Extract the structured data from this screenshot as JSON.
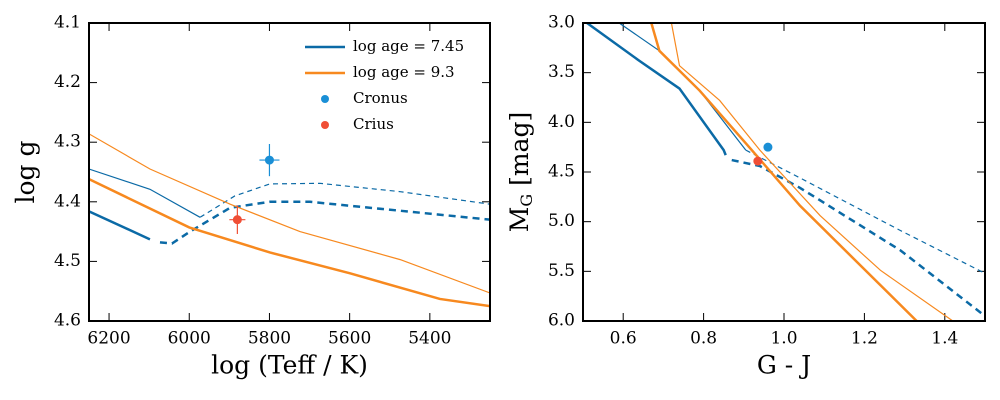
{
  "chart_data": [
    {
      "type": "line",
      "xlabel": "log (Teff / K)",
      "ylabel": [
        "log g"
      ],
      "xlim": [
        6250,
        5250
      ],
      "ylim": [
        4.6,
        4.1
      ],
      "xticks": [
        6200,
        6000,
        5800,
        5600,
        5400
      ],
      "yticks": [
        4.1,
        4.2,
        4.3,
        4.4,
        4.5,
        4.6
      ],
      "legend": "upper right",
      "series": [
        {
          "type": "line",
          "name": "log age = 7.45",
          "color": "#0b6aa6",
          "curves": [
            {
              "width": 2.5,
              "dash": "none",
              "x": [
                6250,
                6098
              ],
              "y": [
                4.416,
                4.463
              ]
            },
            {
              "width": 2.5,
              "dash": "7 5",
              "x": [
                6073,
                6043,
                5998,
                5898,
                5799,
                5699,
                5474,
                5250
              ],
              "y": [
                4.468,
                4.47,
                4.45,
                4.41,
                4.4,
                4.4,
                4.415,
                4.43
              ]
            },
            {
              "width": 1.2,
              "dash": "none",
              "x": [
                6250,
                6098,
                5973
              ],
              "y": [
                4.345,
                4.379,
                4.426
              ]
            },
            {
              "width": 1.2,
              "dash": "5 4",
              "x": [
                5973,
                5886,
                5799,
                5674,
                5474,
                5250
              ],
              "y": [
                4.426,
                4.39,
                4.37,
                4.369,
                4.383,
                4.404
              ]
            }
          ]
        },
        {
          "type": "line",
          "name": "log age = 9.3",
          "color": "#f7891f",
          "curves": [
            {
              "width": 2.5,
              "dash": "none",
              "x": [
                6250,
                6000,
                5799,
                5599,
                5375,
                5250
              ],
              "y": [
                4.362,
                4.443,
                4.485,
                4.52,
                4.563,
                4.575
              ]
            },
            {
              "width": 1.2,
              "dash": "none",
              "x": [
                6250,
                6098,
                5898,
                5724,
                5474,
                5250
              ],
              "y": [
                4.286,
                4.345,
                4.404,
                4.45,
                4.497,
                4.553
              ]
            }
          ]
        },
        {
          "type": "scatter",
          "name": "Cronus",
          "color": "#1a8fd6",
          "x": [
            5800
          ],
          "y": [
            4.33
          ],
          "xerr": [
            25
          ],
          "yerr": [
            0.027
          ]
        },
        {
          "type": "scatter",
          "name": "Crius",
          "color": "#f04e35",
          "x": [
            5880
          ],
          "y": [
            4.43
          ],
          "xerr": [
            20
          ],
          "yerr": [
            0.024
          ]
        }
      ]
    },
    {
      "type": "line",
      "xlabel": "G - J",
      "ylabel": [
        "M",
        "G",
        " [mag]"
      ],
      "xlim": [
        0.5,
        1.5
      ],
      "ylim": [
        6.0,
        3.0
      ],
      "xticks": [
        0.6,
        0.8,
        {
          "value": 1.0,
          "label": "1.0"
        },
        1.2,
        1.4
      ],
      "yticks": [
        {
          "value": 3.0,
          "label": "3.0"
        },
        3.5,
        {
          "value": 4.0,
          "label": "4.0"
        },
        4.5,
        {
          "value": 5.0,
          "label": "5.0"
        },
        5.5,
        {
          "value": 6.0,
          "label": "6.0"
        }
      ],
      "series": [
        {
          "type": "line",
          "color": "#0b6aa6",
          "curves": [
            {
              "width": 2.5,
              "dash": "none",
              "x": [
                0.51,
                0.64,
                0.74,
                0.85,
                0.855
              ],
              "y": [
                3.0,
                3.38,
                3.66,
                4.28,
                4.33
              ]
            },
            {
              "width": 2.5,
              "dash": "7 5",
              "x": [
                0.87,
                0.94,
                1.04,
                1.29,
                1.5
              ],
              "y": [
                4.38,
                4.44,
                4.66,
                5.29,
                5.95
              ]
            },
            {
              "width": 1.2,
              "dash": "none",
              "x": [
                0.59,
                0.69,
                0.79,
                0.905
              ],
              "y": [
                3.0,
                3.28,
                3.68,
                4.28
              ]
            },
            {
              "width": 1.2,
              "dash": "5 4",
              "x": [
                0.905,
                1.04,
                1.29,
                1.5
              ],
              "y": [
                4.28,
                4.56,
                5.09,
                5.52
              ]
            }
          ]
        },
        {
          "type": "line",
          "color": "#f7891f",
          "curves": [
            {
              "width": 2.5,
              "dash": "none",
              "x": [
                0.67,
                0.69,
                0.79,
                0.92,
                1.04,
                1.19,
                1.33
              ],
              "y": [
                3.0,
                3.28,
                3.68,
                4.28,
                4.84,
                5.44,
                6.0
              ]
            },
            {
              "width": 1.2,
              "dash": "none",
              "x": [
                0.72,
                0.74,
                0.84,
                0.94,
                1.09,
                1.24,
                1.42
              ],
              "y": [
                3.0,
                3.43,
                3.78,
                4.28,
                4.94,
                5.49,
                6.0
              ]
            }
          ]
        },
        {
          "type": "scatter",
          "color": "#1a8fd6",
          "x": [
            0.96
          ],
          "y": [
            4.25
          ]
        },
        {
          "type": "scatter",
          "color": "#f04e35",
          "x": [
            0.935
          ],
          "y": [
            4.39
          ]
        }
      ]
    }
  ]
}
